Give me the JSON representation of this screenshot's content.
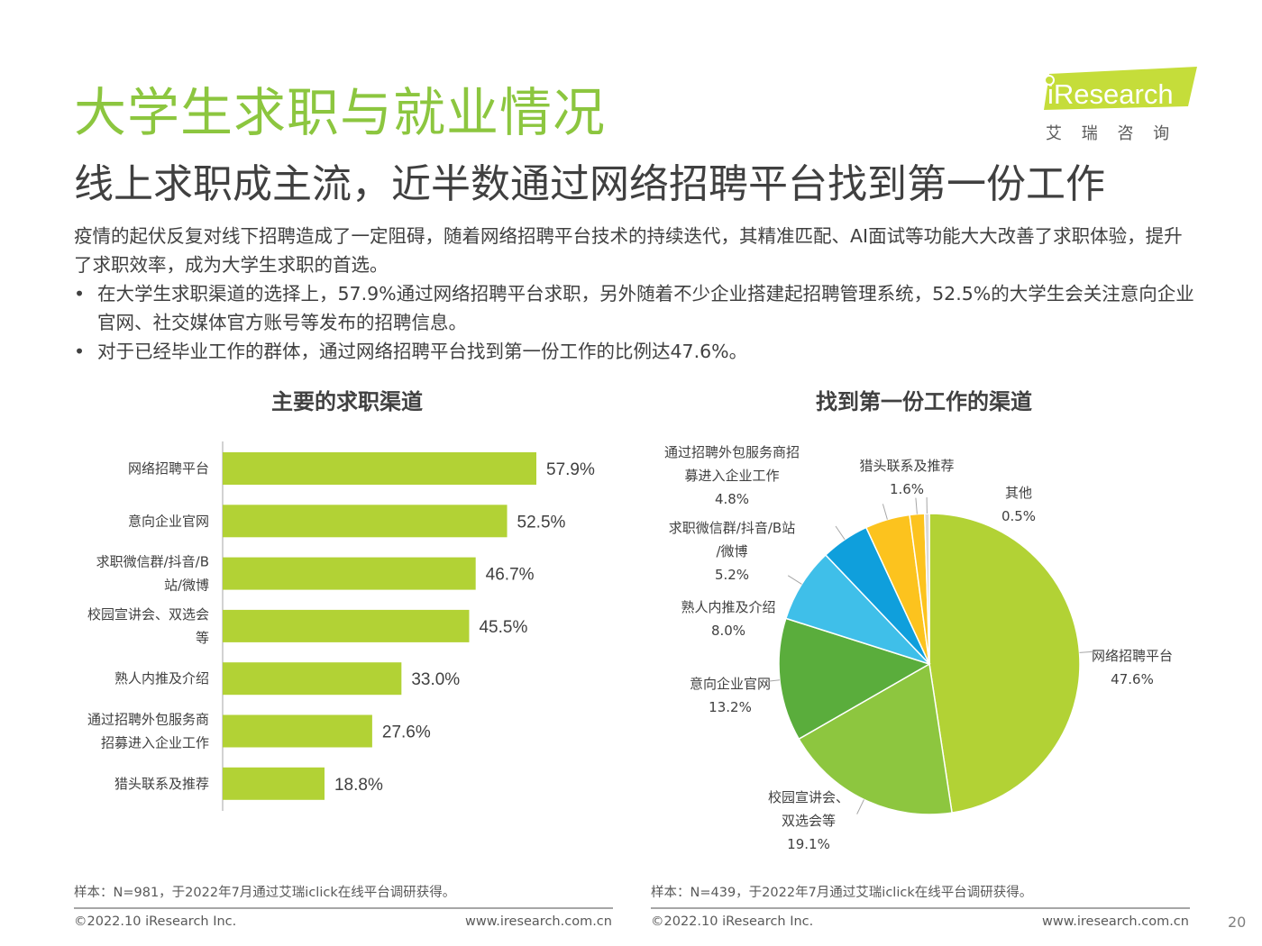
{
  "header": {
    "title": "大学生求职与就业情况",
    "subtitle": "线上求职成主流，近半数通过网络招聘平台找到第一份工作",
    "logo_text": "iResearch",
    "logo_sub": "艾 瑞 咨 询"
  },
  "intro": {
    "paragraph": "疫情的起伏反复对线下招聘造成了一定阻碍，随着网络招聘平台技术的持续迭代，其精准匹配、AI面试等功能大大改善了求职体验，提升了求职效率，成为大学生求职的首选。",
    "bullets": [
      "在大学生求职渠道的选择上，57.9%通过网络招聘平台求职，另外随着不少企业搭建起招聘管理系统，52.5%的大学生会关注意向企业官网、社交媒体官方账号等发布的招聘信息。",
      "对于已经毕业工作的群体，通过网络招聘平台找到第一份工作的比例达47.6%。"
    ]
  },
  "chart_data": [
    {
      "type": "bar",
      "orientation": "horizontal",
      "title": "主要的求职渠道",
      "categories": [
        "网络招聘平台",
        "意向企业官网",
        "求职微信群/抖音/B站/微博",
        "校园宣讲会、双选会等",
        "熟人内推及介绍",
        "通过招聘外包服务商招募进入企业工作",
        "猎头联系及推荐"
      ],
      "category_lines": [
        [
          "网络招聘平台"
        ],
        [
          "意向企业官网"
        ],
        [
          "求职微信群/抖音/B",
          "站/微博"
        ],
        [
          "校园宣讲会、双选会",
          "等"
        ],
        [
          "熟人内推及介绍"
        ],
        [
          "通过招聘外包服务商",
          "招募进入企业工作"
        ],
        [
          "猎头联系及推荐"
        ]
      ],
      "values": [
        57.9,
        52.5,
        46.7,
        45.5,
        33.0,
        27.6,
        18.8
      ],
      "value_labels": [
        "57.9%",
        "52.5%",
        "46.7%",
        "45.5%",
        "33.0%",
        "27.6%",
        "18.8%"
      ],
      "unit": "%",
      "color": "#b2d235",
      "note": "样本：N=981，于2022年7月通过艾瑞iclick在线平台调研获得。"
    },
    {
      "type": "pie",
      "title": "找到第一份工作的渠道",
      "slices": [
        {
          "label": "网络招聘平台",
          "label_lines": [
            "网络招聘平台"
          ],
          "value": 47.6,
          "value_label": "47.6%",
          "color": "#b2d235"
        },
        {
          "label": "校园宣讲会、双选会等",
          "label_lines": [
            "校园宣讲会、",
            "双选会等"
          ],
          "value": 19.1,
          "value_label": "19.1%",
          "color": "#8dc63f"
        },
        {
          "label": "意向企业官网",
          "label_lines": [
            "意向企业官网"
          ],
          "value": 13.2,
          "value_label": "13.2%",
          "color": "#5aad3c"
        },
        {
          "label": "熟人内推及介绍",
          "label_lines": [
            "熟人内推及介绍"
          ],
          "value": 8.0,
          "value_label": "8.0%",
          "color": "#3fbfe9"
        },
        {
          "label": "求职微信群/抖音/B站/微博",
          "label_lines": [
            "求职微信群/抖音/B站",
            "/微博"
          ],
          "value": 5.2,
          "value_label": "5.2%",
          "color": "#0f9fdc"
        },
        {
          "label": "通过招聘外包服务商招募进入企业工作",
          "label_lines": [
            "通过招聘外包服务商招",
            "募进入企业工作"
          ],
          "value": 4.8,
          "value_label": "4.8%",
          "color": "#fcc31e"
        },
        {
          "label": "猎头联系及推荐",
          "label_lines": [
            "猎头联系及推荐"
          ],
          "value": 1.6,
          "value_label": "1.6%",
          "color": "#fcc31e"
        },
        {
          "label": "其他",
          "label_lines": [
            "其他"
          ],
          "value": 0.5,
          "value_label": "0.5%",
          "color": "#d9d9d9"
        }
      ],
      "note": "样本：N=439，于2022年7月通过艾瑞iclick在线平台调研获得。"
    }
  ],
  "footer": {
    "copyright": "©2022.10 iResearch Inc.",
    "website": "www.iresearch.com.cn",
    "page_number": "20"
  },
  "colors": {
    "accent": "#8cc63f",
    "bar": "#b2d235"
  }
}
